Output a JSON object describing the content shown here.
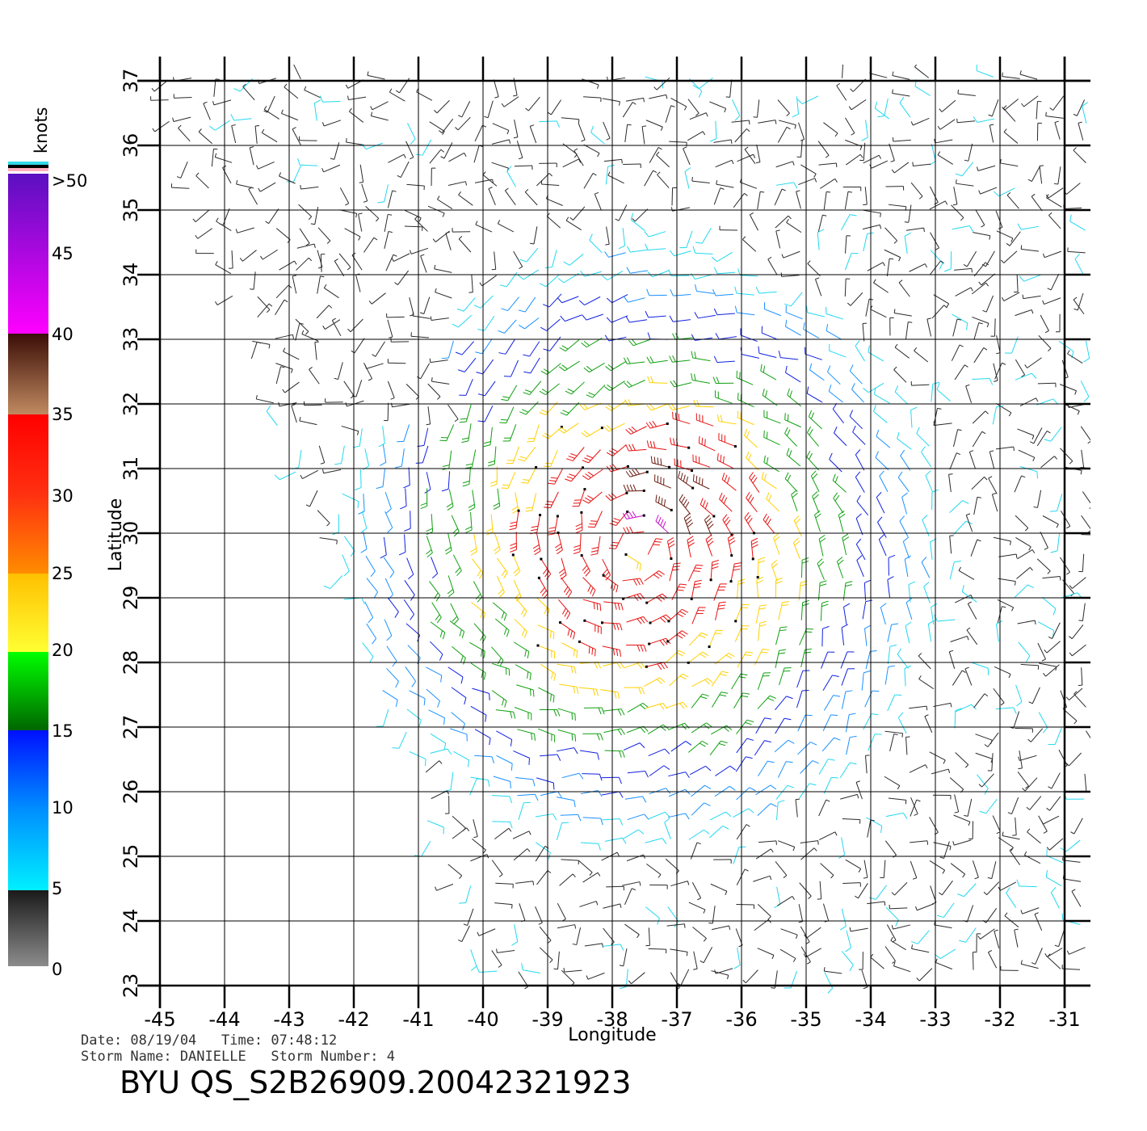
{
  "map": {
    "x_axis_label": "Longitude",
    "y_axis_label": "Latitude",
    "lon_ticks": [
      "-45",
      "-44",
      "-43",
      "-42",
      "-41",
      "-40",
      "-39",
      "-38",
      "-37",
      "-36",
      "-35",
      "-34",
      "-33",
      "-32",
      "-31"
    ],
    "lat_ticks": [
      "23",
      "24",
      "25",
      "26",
      "27",
      "28",
      "29",
      "30",
      "31",
      "32",
      "33",
      "34",
      "35",
      "36",
      "37"
    ],
    "lon_range": [
      -45,
      -31
    ],
    "lat_range": [
      23,
      37
    ],
    "storm_center": {
      "lon": -37.6,
      "lat": 29.8
    },
    "grid": true
  },
  "legend": {
    "unit_label": "knots",
    "tick_labels": [
      ">50",
      "45",
      "40",
      "35",
      "30",
      "25",
      "20",
      "15",
      "10",
      "5",
      "0"
    ],
    "speed_bins": [
      {
        "range": [
          0,
          5
        ],
        "color_bottom": "#8c8c8c",
        "color_top": "#1a1a1a"
      },
      {
        "range": [
          5,
          15
        ],
        "color_bottom": "#00f0ff",
        "color_top": "#0010ff"
      },
      {
        "range": [
          15,
          20
        ],
        "color_bottom": "#006600",
        "color_top": "#00ff00"
      },
      {
        "range": [
          20,
          25
        ],
        "color_bottom": "#ffff33",
        "color_top": "#ffc000"
      },
      {
        "range": [
          25,
          35
        ],
        "color_bottom": "#ff8c00",
        "color_top": "#ff0000"
      },
      {
        "range": [
          35,
          40
        ],
        "color_bottom": "#c08a60",
        "color_top": "#3b0d06"
      },
      {
        "range": [
          40,
          50
        ],
        "color_bottom": "#ff00ff",
        "color_top": "#5a10c0"
      }
    ],
    "top_caps": [
      "#30d8e8",
      "#000000",
      "#ffb0c0"
    ]
  },
  "metadata": {
    "line1": "Date: 08/19/04   Time: 07:48:12",
    "line2": "Storm Name: DANIELLE   Storm Number: 4",
    "title": "BYU QS_S2B26909.20042321923"
  }
}
